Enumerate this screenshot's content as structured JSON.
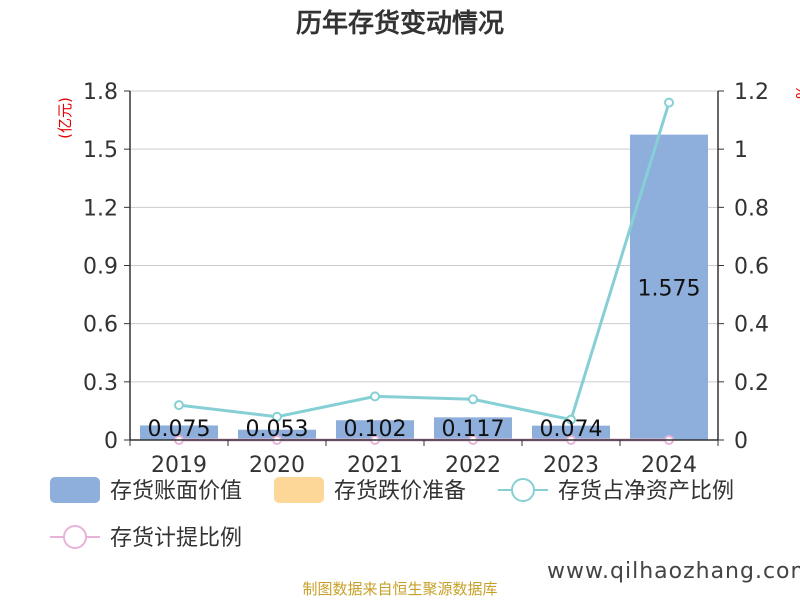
{
  "chart_data": {
    "type": "bar",
    "title": "历年存货变动情况",
    "categories": [
      "2019",
      "2020",
      "2021",
      "2022",
      "2023",
      "2024"
    ],
    "y_left": {
      "unit": "(亿元)",
      "ylim": [
        0,
        1.8
      ],
      "ticks": [
        "0",
        "0.3",
        "0.6",
        "0.9",
        "1.2",
        "1.5",
        "1.8"
      ],
      "tick_values": [
        0,
        0.3,
        0.6,
        0.9,
        1.2,
        1.5,
        1.8
      ]
    },
    "y_right": {
      "unit": "%",
      "ylim": [
        0,
        1.2
      ],
      "ticks": [
        "0",
        "0.2",
        "0.4",
        "0.6",
        "0.8",
        "1",
        "1.2"
      ],
      "tick_values": [
        0,
        0.2,
        0.4,
        0.6,
        0.8,
        1,
        1.2
      ]
    },
    "series": [
      {
        "name": "存货账面价值",
        "type": "bar",
        "axis": "left",
        "color": "#8eaedc",
        "values": [
          0.075,
          0.053,
          0.102,
          0.117,
          0.074,
          1.575
        ],
        "labels": [
          "0.075",
          "0.053",
          "0.102",
          "0.117",
          "0.074",
          "1.575"
        ]
      },
      {
        "name": "存货跌价准备",
        "type": "bar",
        "axis": "left",
        "color": "#fdd797",
        "values": [
          0,
          0,
          0,
          0,
          0,
          0
        ]
      },
      {
        "name": "存货占净资产比例",
        "type": "line",
        "axis": "right",
        "color": "#86d0d5",
        "values": [
          0.12,
          0.08,
          0.15,
          0.14,
          0.07,
          1.16
        ]
      },
      {
        "name": "存货计提比例",
        "type": "line",
        "axis": "right",
        "color": "#e8b3d8",
        "values": [
          0,
          0,
          0,
          0,
          0,
          0
        ]
      }
    ],
    "grid": true,
    "legend": "bottom"
  },
  "footer": {
    "source": "制图数据来自恒生聚源数据库",
    "watermark": "www.qilhaozhang.com"
  }
}
